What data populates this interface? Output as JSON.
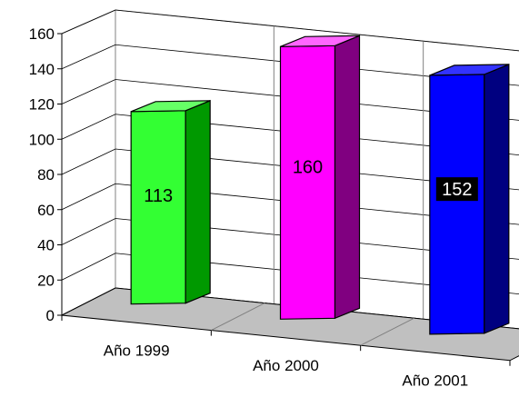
{
  "chart_data": {
    "type": "bar",
    "categories": [
      "Año 1999",
      "Año 2000",
      "Año 2001"
    ],
    "values": [
      113,
      160,
      152
    ],
    "data_labels": [
      "113",
      "160",
      "152"
    ],
    "ylim": [
      0,
      160
    ],
    "yticks": [
      0,
      20,
      40,
      60,
      80,
      100,
      120,
      140,
      160
    ],
    "ytick_labels": [
      "0",
      "20",
      "40",
      "60",
      "80",
      "100",
      "120",
      "140",
      "160"
    ],
    "grid": true,
    "legend": "none",
    "three_d": true,
    "colors": {
      "series": [
        "#33ff33",
        "#ff00ff",
        "#0000ff"
      ],
      "side": [
        "#009900",
        "#800080",
        "#000080"
      ],
      "top": [
        "#66ff66",
        "#ff66ff",
        "#3333ff"
      ],
      "data_label_bg": [
        "",
        "",
        "#000000"
      ],
      "data_label_fg": [
        "#000000",
        "#000000",
        "#ffffff"
      ],
      "walls": "#ffffff",
      "floor": "#c0c0c0",
      "gridline": "#808080"
    }
  }
}
